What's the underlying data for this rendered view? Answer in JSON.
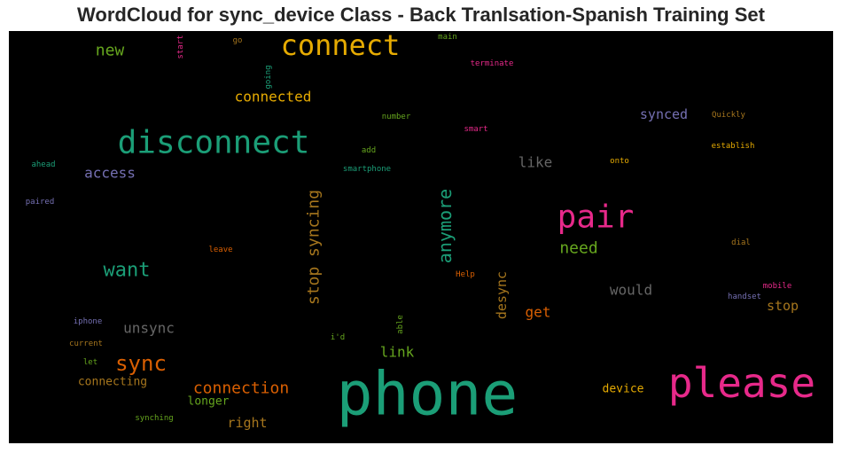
{
  "chart_data": {
    "type": "wordcloud",
    "title": "WordCloud for sync_device Class - Back Tranlsation-Spanish Training Set",
    "background": "#000000",
    "words": [
      {
        "text": "phone",
        "size": 68,
        "color": "#1b9e77",
        "orientation": "horizontal"
      },
      {
        "text": "please",
        "size": 46,
        "color": "#e7298a",
        "orientation": "horizontal"
      },
      {
        "text": "disconnect",
        "size": 36,
        "color": "#1b9e77",
        "orientation": "horizontal"
      },
      {
        "text": "pair",
        "size": 36,
        "color": "#e7298a",
        "orientation": "horizontal"
      },
      {
        "text": "connect",
        "size": 32,
        "color": "#e6ab02",
        "orientation": "horizontal"
      },
      {
        "text": "sync",
        "size": 24,
        "color": "#d95f02",
        "orientation": "horizontal"
      },
      {
        "text": "want",
        "size": 22,
        "color": "#1b9e77",
        "orientation": "horizontal"
      },
      {
        "text": "anymore",
        "size": 20,
        "color": "#1b9e77",
        "orientation": "vertical"
      },
      {
        "text": "stop syncing",
        "size": 18,
        "color": "#a6761d",
        "orientation": "vertical"
      },
      {
        "text": "connection",
        "size": 18,
        "color": "#d95f02",
        "orientation": "horizontal"
      },
      {
        "text": "need",
        "size": 18,
        "color": "#66a61e",
        "orientation": "horizontal"
      },
      {
        "text": "new",
        "size": 18,
        "color": "#66a61e",
        "orientation": "horizontal"
      },
      {
        "text": "connected",
        "size": 16,
        "color": "#e6ab02",
        "orientation": "horizontal"
      },
      {
        "text": "unsync",
        "size": 16,
        "color": "#666666",
        "orientation": "horizontal"
      },
      {
        "text": "like",
        "size": 16,
        "color": "#666666",
        "orientation": "horizontal"
      },
      {
        "text": "would",
        "size": 16,
        "color": "#666666",
        "orientation": "horizontal"
      },
      {
        "text": "access",
        "size": 16,
        "color": "#7570b3",
        "orientation": "horizontal"
      },
      {
        "text": "synced",
        "size": 15,
        "color": "#7570b3",
        "orientation": "horizontal"
      },
      {
        "text": "get",
        "size": 16,
        "color": "#d95f02",
        "orientation": "horizontal"
      },
      {
        "text": "link",
        "size": 16,
        "color": "#66a61e",
        "orientation": "horizontal"
      },
      {
        "text": "desync",
        "size": 15,
        "color": "#a6761d",
        "orientation": "vertical"
      },
      {
        "text": "right",
        "size": 15,
        "color": "#a6761d",
        "orientation": "horizontal"
      },
      {
        "text": "stop",
        "size": 15,
        "color": "#a6761d",
        "orientation": "horizontal"
      },
      {
        "text": "connecting",
        "size": 13,
        "color": "#a6761d",
        "orientation": "horizontal"
      },
      {
        "text": "longer",
        "size": 13,
        "color": "#66a61e",
        "orientation": "horizontal"
      },
      {
        "text": "device",
        "size": 13,
        "color": "#e6ab02",
        "orientation": "horizontal"
      },
      {
        "text": "Quickly",
        "size": 9,
        "color": "#a6761d",
        "orientation": "horizontal"
      },
      {
        "text": "establish",
        "size": 9,
        "color": "#e6ab02",
        "orientation": "horizontal"
      },
      {
        "text": "onto",
        "size": 9,
        "color": "#e6ab02",
        "orientation": "horizontal"
      },
      {
        "text": "dial",
        "size": 9,
        "color": "#a6761d",
        "orientation": "horizontal"
      },
      {
        "text": "mobile",
        "size": 9,
        "color": "#e7298a",
        "orientation": "horizontal"
      },
      {
        "text": "handset",
        "size": 9,
        "color": "#7570b3",
        "orientation": "horizontal"
      },
      {
        "text": "smart",
        "size": 9,
        "color": "#e7298a",
        "orientation": "horizontal"
      },
      {
        "text": "terminate",
        "size": 9,
        "color": "#e7298a",
        "orientation": "horizontal"
      },
      {
        "text": "main",
        "size": 9,
        "color": "#66a61e",
        "orientation": "horizontal"
      },
      {
        "text": "number",
        "size": 9,
        "color": "#66a61e",
        "orientation": "horizontal"
      },
      {
        "text": "add",
        "size": 9,
        "color": "#66a61e",
        "orientation": "horizontal"
      },
      {
        "text": "smartphone",
        "size": 9,
        "color": "#1b9e77",
        "orientation": "horizontal"
      },
      {
        "text": "ahead",
        "size": 9,
        "color": "#1b9e77",
        "orientation": "horizontal"
      },
      {
        "text": "paired",
        "size": 9,
        "color": "#7570b3",
        "orientation": "horizontal"
      },
      {
        "text": "start",
        "size": 9,
        "color": "#e7298a",
        "orientation": "vertical"
      },
      {
        "text": "go",
        "size": 9,
        "color": "#a6761d",
        "orientation": "horizontal"
      },
      {
        "text": "going",
        "size": 9,
        "color": "#1b9e77",
        "orientation": "vertical"
      },
      {
        "text": "leave",
        "size": 9,
        "color": "#d95f02",
        "orientation": "horizontal"
      },
      {
        "text": "Help",
        "size": 9,
        "color": "#d95f02",
        "orientation": "horizontal"
      },
      {
        "text": "able",
        "size": 9,
        "color": "#66a61e",
        "orientation": "vertical"
      },
      {
        "text": "i'd",
        "size": 9,
        "color": "#66a61e",
        "orientation": "horizontal"
      },
      {
        "text": "iphone",
        "size": 9,
        "color": "#7570b3",
        "orientation": "horizontal"
      },
      {
        "text": "current",
        "size": 9,
        "color": "#a6761d",
        "orientation": "horizontal"
      },
      {
        "text": "let",
        "size": 9,
        "color": "#66a61e",
        "orientation": "horizontal"
      },
      {
        "text": "synching",
        "size": 9,
        "color": "#66a61e",
        "orientation": "horizontal"
      }
    ]
  }
}
